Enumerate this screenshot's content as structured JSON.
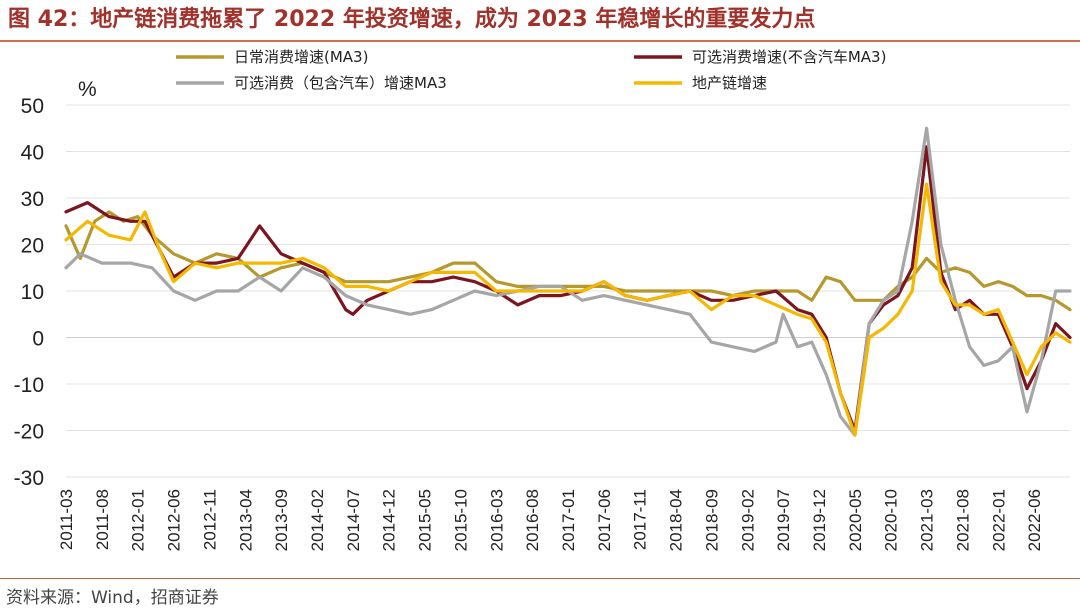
{
  "title": "图 42：地产链消费拖累了 2022 年投资增速，成为 2023 年稳增长的重要发力点",
  "source": "资料来源：Wind，招商证券",
  "chart_data": {
    "type": "line",
    "unit_label": "%",
    "ylim": [
      -30,
      50
    ],
    "yticks": [
      50,
      40,
      30,
      20,
      10,
      0,
      -10,
      -20,
      -30
    ],
    "x_tick_labels": [
      "2011-03",
      "2011-08",
      "2012-01",
      "2012-06",
      "2012-11",
      "2013-04",
      "2013-09",
      "2014-02",
      "2014-07",
      "2014-12",
      "2015-05",
      "2015-10",
      "2016-03",
      "2016-08",
      "2017-01",
      "2017-06",
      "2017-11",
      "2018-04",
      "2018-09",
      "2019-02",
      "2019-07",
      "2019-12",
      "2020-05",
      "2020-10",
      "2021-03",
      "2021-08",
      "2022-01",
      "2022-06"
    ],
    "x_start": "2011-03",
    "x_end": "2022-11",
    "grid": true,
    "legend_position": "top",
    "series": [
      {
        "name": "日常消费增速(MA3)",
        "color": "#b5982e",
        "values": [
          [
            "2011-03",
            24
          ],
          [
            "2011-05",
            17
          ],
          [
            "2011-07",
            25
          ],
          [
            "2011-09",
            27
          ],
          [
            "2011-11",
            25
          ],
          [
            "2012-01",
            26
          ],
          [
            "2012-03",
            22
          ],
          [
            "2012-06",
            18
          ],
          [
            "2012-09",
            16
          ],
          [
            "2012-12",
            18
          ],
          [
            "2013-03",
            17
          ],
          [
            "2013-06",
            13
          ],
          [
            "2013-09",
            15
          ],
          [
            "2013-12",
            16
          ],
          [
            "2014-03",
            14
          ],
          [
            "2014-06",
            12
          ],
          [
            "2014-09",
            12
          ],
          [
            "2014-12",
            12
          ],
          [
            "2015-03",
            13
          ],
          [
            "2015-06",
            14
          ],
          [
            "2015-09",
            16
          ],
          [
            "2015-12",
            16
          ],
          [
            "2016-03",
            12
          ],
          [
            "2016-06",
            11
          ],
          [
            "2016-09",
            11
          ],
          [
            "2016-12",
            11
          ],
          [
            "2017-03",
            11
          ],
          [
            "2017-06",
            11
          ],
          [
            "2017-09",
            10
          ],
          [
            "2017-12",
            10
          ],
          [
            "2018-03",
            10
          ],
          [
            "2018-06",
            10
          ],
          [
            "2018-09",
            10
          ],
          [
            "2018-12",
            9
          ],
          [
            "2019-03",
            10
          ],
          [
            "2019-06",
            10
          ],
          [
            "2019-09",
            10
          ],
          [
            "2019-11",
            8
          ],
          [
            "2020-01",
            13
          ],
          [
            "2020-03",
            12
          ],
          [
            "2020-05",
            8
          ],
          [
            "2020-07",
            8
          ],
          [
            "2020-09",
            8
          ],
          [
            "2020-11",
            11
          ],
          [
            "2021-01",
            13
          ],
          [
            "2021-03",
            17
          ],
          [
            "2021-05",
            14
          ],
          [
            "2021-07",
            15
          ],
          [
            "2021-09",
            14
          ],
          [
            "2021-11",
            11
          ],
          [
            "2022-01",
            12
          ],
          [
            "2022-03",
            11
          ],
          [
            "2022-05",
            9
          ],
          [
            "2022-07",
            9
          ],
          [
            "2022-09",
            8
          ],
          [
            "2022-11",
            6
          ]
        ]
      },
      {
        "name": "可选消费增速(不含汽车MA3)",
        "color": "#7b1621",
        "values": [
          [
            "2011-03",
            27
          ],
          [
            "2011-06",
            29
          ],
          [
            "2011-09",
            26
          ],
          [
            "2011-12",
            25
          ],
          [
            "2012-02",
            25
          ],
          [
            "2012-04",
            19
          ],
          [
            "2012-06",
            13
          ],
          [
            "2012-09",
            16
          ],
          [
            "2012-12",
            16
          ],
          [
            "2013-03",
            17
          ],
          [
            "2013-06",
            24
          ],
          [
            "2013-09",
            18
          ],
          [
            "2013-12",
            16
          ],
          [
            "2014-03",
            14
          ],
          [
            "2014-06",
            6
          ],
          [
            "2014-07",
            5
          ],
          [
            "2014-09",
            8
          ],
          [
            "2014-12",
            10
          ],
          [
            "2015-03",
            12
          ],
          [
            "2015-06",
            12
          ],
          [
            "2015-09",
            13
          ],
          [
            "2015-12",
            12
          ],
          [
            "2016-03",
            10
          ],
          [
            "2016-06",
            7
          ],
          [
            "2016-09",
            9
          ],
          [
            "2016-12",
            9
          ],
          [
            "2017-03",
            10
          ],
          [
            "2017-06",
            12
          ],
          [
            "2017-09",
            9
          ],
          [
            "2017-12",
            8
          ],
          [
            "2018-03",
            9
          ],
          [
            "2018-06",
            10
          ],
          [
            "2018-09",
            8
          ],
          [
            "2018-12",
            8
          ],
          [
            "2019-03",
            9
          ],
          [
            "2019-06",
            10
          ],
          [
            "2019-09",
            6
          ],
          [
            "2019-11",
            5
          ],
          [
            "2020-01",
            0
          ],
          [
            "2020-03",
            -12
          ],
          [
            "2020-05",
            -20
          ],
          [
            "2020-07",
            3
          ],
          [
            "2020-09",
            7
          ],
          [
            "2020-11",
            9
          ],
          [
            "2021-01",
            15
          ],
          [
            "2021-03",
            41
          ],
          [
            "2021-05",
            14
          ],
          [
            "2021-07",
            6
          ],
          [
            "2021-09",
            8
          ],
          [
            "2021-11",
            5
          ],
          [
            "2022-01",
            5
          ],
          [
            "2022-03",
            -2
          ],
          [
            "2022-05",
            -11
          ],
          [
            "2022-07",
            -5
          ],
          [
            "2022-09",
            3
          ],
          [
            "2022-11",
            0
          ]
        ]
      },
      {
        "name": "可选消费（包含汽车）增速MA3",
        "color": "#a6a6a6",
        "values": [
          [
            "2011-03",
            15
          ],
          [
            "2011-05",
            18
          ],
          [
            "2011-08",
            16
          ],
          [
            "2011-12",
            16
          ],
          [
            "2012-03",
            15
          ],
          [
            "2012-06",
            10
          ],
          [
            "2012-09",
            8
          ],
          [
            "2012-12",
            10
          ],
          [
            "2013-03",
            10
          ],
          [
            "2013-06",
            13
          ],
          [
            "2013-09",
            10
          ],
          [
            "2013-12",
            15
          ],
          [
            "2014-03",
            13
          ],
          [
            "2014-06",
            9
          ],
          [
            "2014-09",
            7
          ],
          [
            "2014-12",
            6
          ],
          [
            "2015-03",
            5
          ],
          [
            "2015-06",
            6
          ],
          [
            "2015-09",
            8
          ],
          [
            "2015-12",
            10
          ],
          [
            "2016-03",
            9
          ],
          [
            "2016-06",
            10
          ],
          [
            "2016-09",
            11
          ],
          [
            "2016-12",
            11
          ],
          [
            "2017-03",
            8
          ],
          [
            "2017-06",
            9
          ],
          [
            "2017-09",
            8
          ],
          [
            "2017-12",
            7
          ],
          [
            "2018-03",
            6
          ],
          [
            "2018-06",
            5
          ],
          [
            "2018-09",
            -1
          ],
          [
            "2018-12",
            -2
          ],
          [
            "2019-03",
            -3
          ],
          [
            "2019-06",
            -1
          ],
          [
            "2019-07",
            5
          ],
          [
            "2019-09",
            -2
          ],
          [
            "2019-11",
            -1
          ],
          [
            "2020-01",
            -8
          ],
          [
            "2020-03",
            -17
          ],
          [
            "2020-05",
            -21
          ],
          [
            "2020-07",
            3
          ],
          [
            "2020-09",
            8
          ],
          [
            "2020-11",
            10
          ],
          [
            "2021-01",
            25
          ],
          [
            "2021-03",
            45
          ],
          [
            "2021-05",
            20
          ],
          [
            "2021-07",
            8
          ],
          [
            "2021-09",
            -2
          ],
          [
            "2021-11",
            -6
          ],
          [
            "2022-01",
            -5
          ],
          [
            "2022-03",
            -2
          ],
          [
            "2022-05",
            -16
          ],
          [
            "2022-07",
            -5
          ],
          [
            "2022-09",
            10
          ],
          [
            "2022-11",
            10
          ]
        ]
      },
      {
        "name": "地产链增速",
        "color": "#f5b800",
        "values": [
          [
            "2011-03",
            21
          ],
          [
            "2011-06",
            25
          ],
          [
            "2011-09",
            22
          ],
          [
            "2011-12",
            21
          ],
          [
            "2012-02",
            27
          ],
          [
            "2012-04",
            19
          ],
          [
            "2012-06",
            12
          ],
          [
            "2012-09",
            16
          ],
          [
            "2012-12",
            15
          ],
          [
            "2013-03",
            16
          ],
          [
            "2013-06",
            16
          ],
          [
            "2013-09",
            16
          ],
          [
            "2013-12",
            17
          ],
          [
            "2014-03",
            15
          ],
          [
            "2014-06",
            11
          ],
          [
            "2014-09",
            11
          ],
          [
            "2014-12",
            10
          ],
          [
            "2015-03",
            12
          ],
          [
            "2015-06",
            14
          ],
          [
            "2015-09",
            14
          ],
          [
            "2015-12",
            14
          ],
          [
            "2016-03",
            10
          ],
          [
            "2016-06",
            10
          ],
          [
            "2016-09",
            10
          ],
          [
            "2016-12",
            10
          ],
          [
            "2017-03",
            10
          ],
          [
            "2017-06",
            12
          ],
          [
            "2017-09",
            9
          ],
          [
            "2017-12",
            8
          ],
          [
            "2018-03",
            9
          ],
          [
            "2018-06",
            10
          ],
          [
            "2018-09",
            6
          ],
          [
            "2018-12",
            9
          ],
          [
            "2019-03",
            9
          ],
          [
            "2019-06",
            7
          ],
          [
            "2019-09",
            5
          ],
          [
            "2019-11",
            4
          ],
          [
            "2020-01",
            -1
          ],
          [
            "2020-03",
            -12
          ],
          [
            "2020-05",
            -21
          ],
          [
            "2020-07",
            0
          ],
          [
            "2020-09",
            2
          ],
          [
            "2020-11",
            5
          ],
          [
            "2021-01",
            10
          ],
          [
            "2021-03",
            33
          ],
          [
            "2021-05",
            12
          ],
          [
            "2021-07",
            7
          ],
          [
            "2021-09",
            7
          ],
          [
            "2021-11",
            5
          ],
          [
            "2022-01",
            6
          ],
          [
            "2022-03",
            -1
          ],
          [
            "2022-05",
            -8
          ],
          [
            "2022-07",
            -2
          ],
          [
            "2022-09",
            1
          ],
          [
            "2022-11",
            -1
          ]
        ]
      }
    ]
  }
}
